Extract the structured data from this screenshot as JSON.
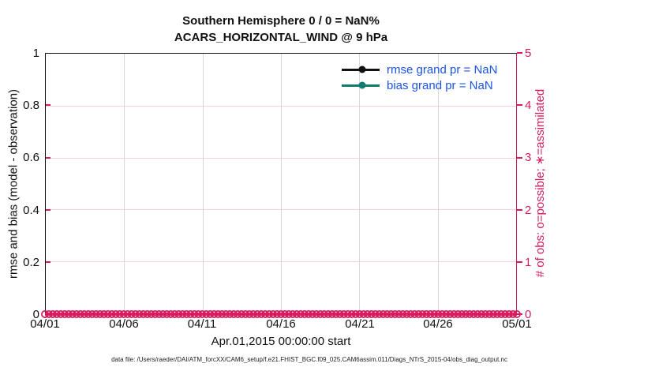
{
  "colors": {
    "crimson": "#D81B5C",
    "teal": "#0E7C70",
    "rmse_black": "#111111",
    "legend_blue": "#1A53E8",
    "grid_gray": "#D8D8D8",
    "grid_pink": "#F4D3DE"
  },
  "chart_data": {
    "type": "line",
    "title": "Southern Hemisphere 0 / 0 = NaN%",
    "subtitle": "ACARS_HORIZONTAL_WIND @ 9 hPa",
    "xlabel": "Apr.01,2015 00:00:00 start",
    "x_ticks": [
      "04/01",
      "04/06",
      "04/11",
      "04/16",
      "04/21",
      "04/26",
      "05/01"
    ],
    "left_axis": {
      "label": "rmse and bias (model - observation)",
      "ticks": [
        "1",
        "0.8",
        "0.6",
        "0.4",
        "0.2",
        "0"
      ],
      "range": [
        0,
        1
      ]
    },
    "right_axis": {
      "label": "# of obs: o=possible; ∗=assimilated",
      "ticks": [
        "5",
        "4",
        "3",
        "2",
        "1",
        "0"
      ],
      "range": [
        0,
        5
      ]
    },
    "grid": true,
    "series": [
      {
        "name": "rmse",
        "grand_pr": "NaN",
        "color": "#111111",
        "values": []
      },
      {
        "name": "bias",
        "grand_pr": "NaN",
        "color": "#0E7C70",
        "values": []
      }
    ],
    "obs_markers": {
      "possible_value": 0,
      "assimilated_value": 0,
      "y": 0,
      "count": 121,
      "color": "#D81B5C"
    }
  },
  "legend": {
    "items": [
      {
        "label": "rmse grand pr = NaN",
        "color": "#111111"
      },
      {
        "label": "bias grand pr = NaN",
        "color": "#0E7C70"
      }
    ]
  },
  "footer": {
    "data_file_note": "data file: /Users/raeder/DAI/ATM_forcXX/CAM6_setup/f.e21.FHIST_BGC.f09_025.CAM6assim.011/Diags_NTrS_2015-04/obs_diag_output.nc"
  }
}
